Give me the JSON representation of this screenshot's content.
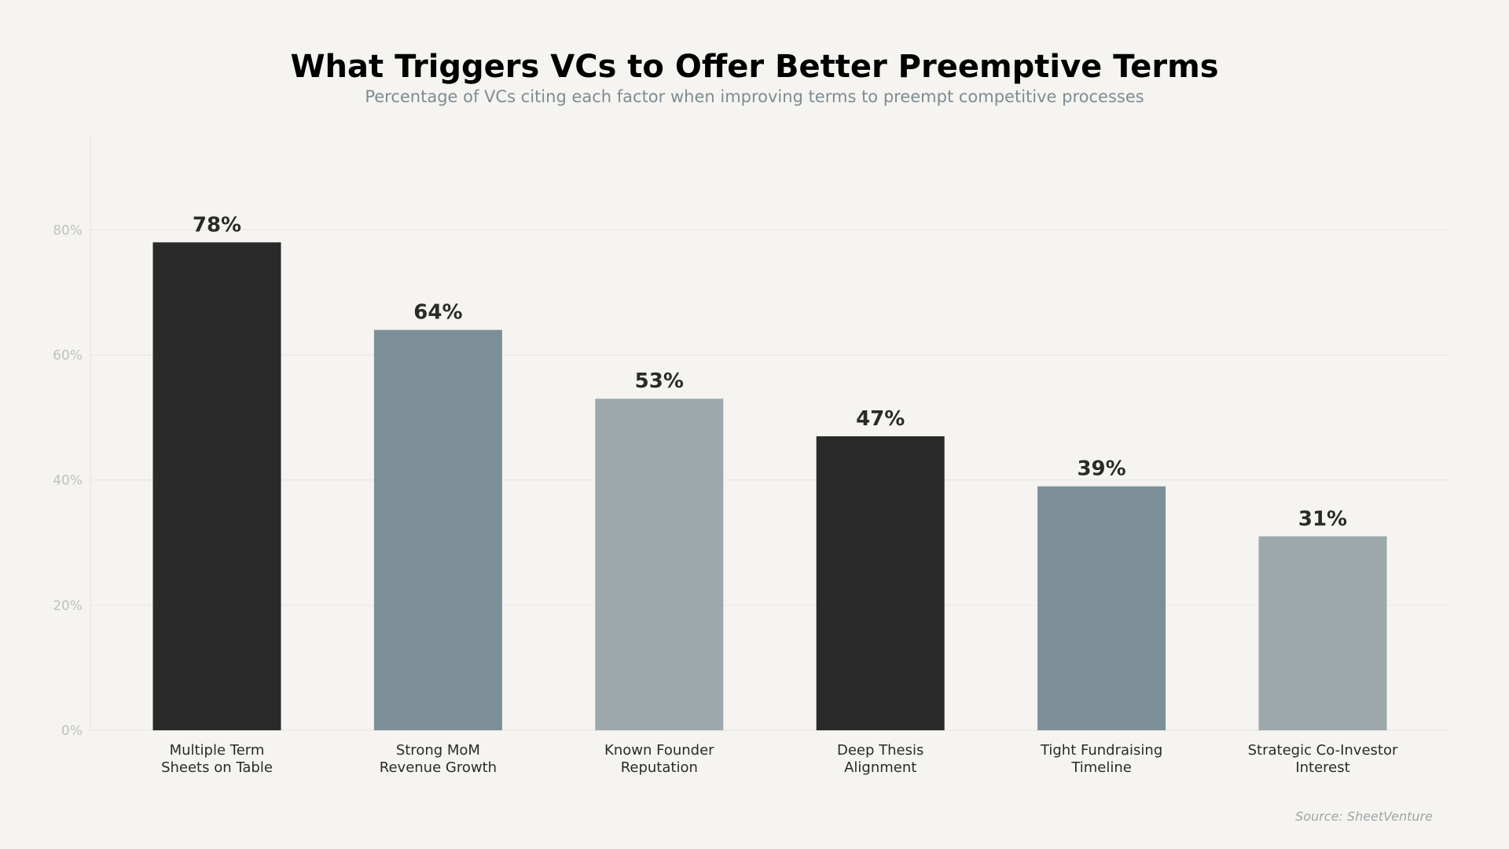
{
  "chart_data": {
    "type": "bar",
    "title": "What Triggers VCs to Offer Better Preemptive Terms",
    "subtitle": "Percentage of VCs citing each factor when improving terms to preempt competitive processes",
    "categories": [
      [
        "Multiple Term",
        "Sheets on Table"
      ],
      [
        "Strong MoM",
        "Revenue Growth"
      ],
      [
        "Known Founder",
        "Reputation"
      ],
      [
        "Deep Thesis",
        "Alignment"
      ],
      [
        "Tight Fundraising",
        "Timeline"
      ],
      [
        "Strategic Co-Investor",
        "Interest"
      ]
    ],
    "values": [
      78,
      64,
      53,
      47,
      39,
      31
    ],
    "value_labels": [
      "78%",
      "64%",
      "53%",
      "47%",
      "39%",
      "31%"
    ],
    "bar_colors": [
      "#2a2a2a",
      "#7d8f96",
      "#9ca8ac",
      "#2a2a2a",
      "#7d8f96",
      "#9ca8ac"
    ],
    "ylim": [
      0,
      95
    ],
    "yticks": [
      0,
      20,
      40,
      60,
      80
    ],
    "ytick_labels": [
      "0%",
      "20%",
      "40%",
      "60%",
      "80%"
    ],
    "grid": true,
    "xlabel": "",
    "ylabel": "",
    "source": "Source: SheetVenture"
  }
}
